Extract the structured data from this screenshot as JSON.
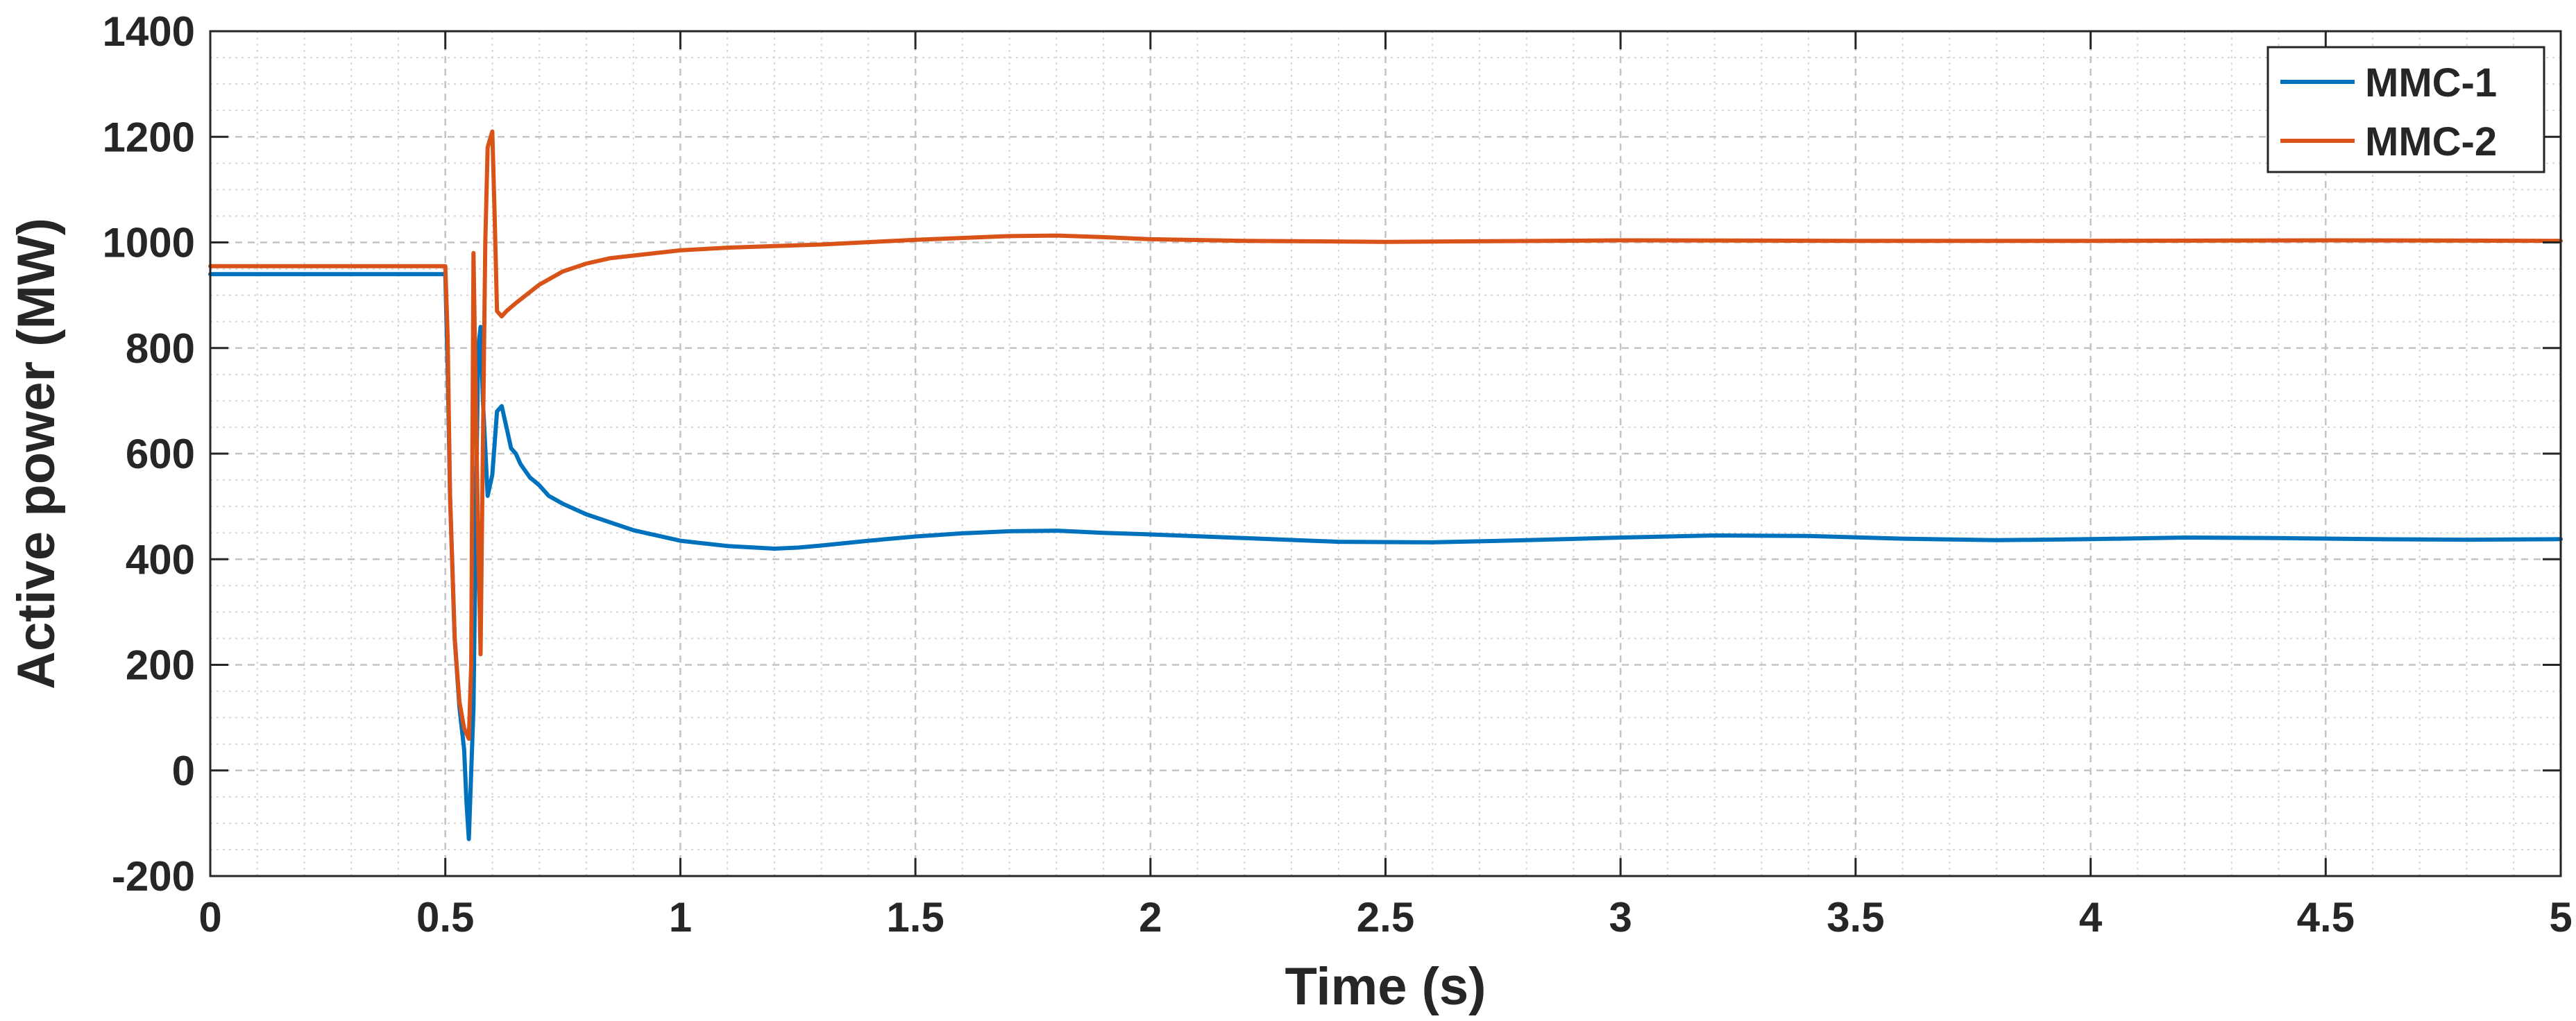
{
  "chart_data": {
    "type": "line",
    "title": "",
    "xlabel": "Time (s)",
    "ylabel": "Active power (MW)",
    "xlim": [
      0,
      5
    ],
    "ylim": [
      -200,
      1400
    ],
    "xticks": [
      0,
      0.5,
      1,
      1.5,
      2,
      2.5,
      3,
      3.5,
      4,
      4.5,
      5
    ],
    "xtick_labels": [
      "0",
      "0.5",
      "1",
      "1.5",
      "2",
      "2.5",
      "3",
      "3.5",
      "4",
      "4.5",
      "5"
    ],
    "yticks": [
      -200,
      0,
      200,
      400,
      600,
      800,
      1000,
      1200,
      1400
    ],
    "ytick_labels": [
      "-200",
      "0",
      "200",
      "400",
      "600",
      "800",
      "1000",
      "1200",
      "1400"
    ],
    "grid": true,
    "minor_grid": true,
    "legend_position": "top-right",
    "series": [
      {
        "name": "MMC-1",
        "color": "#0072BD",
        "x": [
          0,
          0.1,
          0.2,
          0.3,
          0.4,
          0.5,
          0.505,
          0.51,
          0.52,
          0.53,
          0.54,
          0.545,
          0.55,
          0.56,
          0.565,
          0.57,
          0.575,
          0.58,
          0.59,
          0.6,
          0.61,
          0.62,
          0.63,
          0.64,
          0.65,
          0.66,
          0.68,
          0.7,
          0.72,
          0.75,
          0.8,
          0.9,
          1.0,
          1.1,
          1.2,
          1.25,
          1.3,
          1.4,
          1.5,
          1.6,
          1.7,
          1.8,
          1.9,
          2.0,
          2.2,
          2.4,
          2.6,
          2.8,
          3.0,
          3.2,
          3.4,
          3.6,
          3.8,
          4.0,
          4.2,
          4.4,
          4.6,
          4.8,
          5.0
        ],
        "y": [
          940,
          940,
          940,
          940,
          940,
          940,
          760,
          520,
          250,
          120,
          40,
          -60,
          -130,
          120,
          480,
          800,
          840,
          700,
          520,
          560,
          680,
          690,
          650,
          610,
          600,
          580,
          555,
          540,
          520,
          505,
          485,
          455,
          435,
          425,
          420,
          422,
          426,
          435,
          443,
          449,
          453,
          454,
          450,
          447,
          440,
          433,
          432,
          436,
          441,
          445,
          444,
          439,
          436,
          438,
          441,
          440,
          438,
          437,
          438
        ]
      },
      {
        "name": "MMC-2",
        "color": "#D95319",
        "x": [
          0,
          0.1,
          0.2,
          0.3,
          0.4,
          0.5,
          0.505,
          0.51,
          0.52,
          0.53,
          0.54,
          0.55,
          0.555,
          0.56,
          0.565,
          0.57,
          0.575,
          0.58,
          0.585,
          0.59,
          0.6,
          0.605,
          0.61,
          0.62,
          0.63,
          0.65,
          0.7,
          0.75,
          0.8,
          0.85,
          0.9,
          1.0,
          1.1,
          1.2,
          1.3,
          1.5,
          1.7,
          1.8,
          1.9,
          2.0,
          2.2,
          2.5,
          3.0,
          3.5,
          4.0,
          4.5,
          5.0
        ],
        "y": [
          955,
          955,
          955,
          955,
          955,
          955,
          820,
          520,
          250,
          130,
          80,
          60,
          200,
          980,
          700,
          430,
          220,
          620,
          1000,
          1180,
          1210,
          1050,
          870,
          860,
          870,
          885,
          920,
          945,
          960,
          970,
          975,
          985,
          990,
          993,
          996,
          1005,
          1012,
          1013,
          1010,
          1006,
          1003,
          1001,
          1004,
          1003,
          1003,
          1004,
          1003
        ]
      }
    ]
  }
}
